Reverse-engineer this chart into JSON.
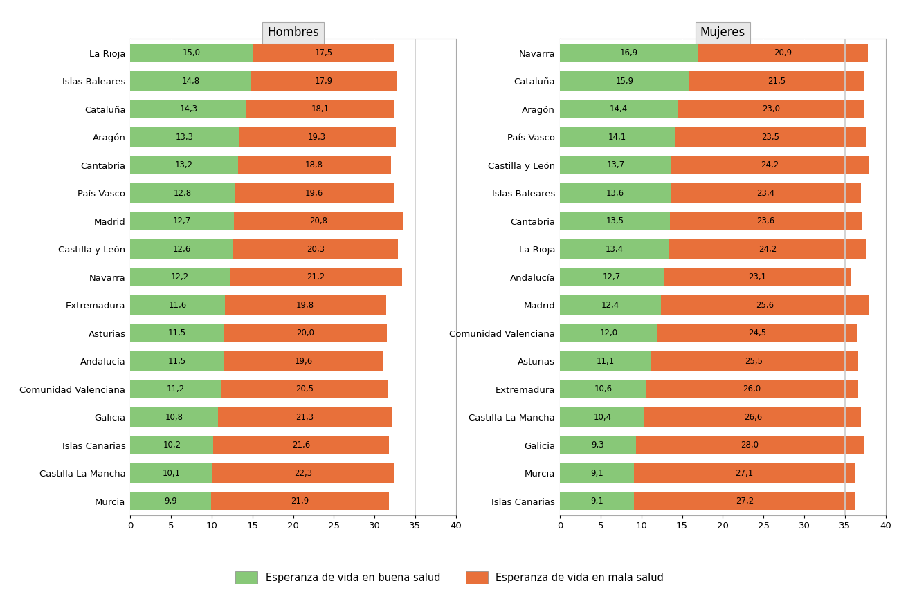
{
  "hombres": {
    "title": "Hombres",
    "categories": [
      "La Rioja",
      "Islas Baleares",
      "Cataluña",
      "Aragón",
      "Cantabria",
      "País Vasco",
      "Madrid",
      "Castilla y León",
      "Navarra",
      "Extremadura",
      "Asturias",
      "Andalucía",
      "Comunidad Valenciana",
      "Galicia",
      "Islas Canarias",
      "Castilla La Mancha",
      "Murcia"
    ],
    "buena": [
      15.0,
      14.8,
      14.3,
      13.3,
      13.2,
      12.8,
      12.7,
      12.6,
      12.2,
      11.6,
      11.5,
      11.5,
      11.2,
      10.8,
      10.2,
      10.1,
      9.9
    ],
    "mala": [
      17.5,
      17.9,
      18.1,
      19.3,
      18.8,
      19.6,
      20.8,
      20.3,
      21.2,
      19.8,
      20.0,
      19.6,
      20.5,
      21.3,
      21.6,
      22.3,
      21.9
    ]
  },
  "mujeres": {
    "title": "Mujeres",
    "categories": [
      "Navarra",
      "Cataluña",
      "Aragón",
      "País Vasco",
      "Castilla y León",
      "Islas Baleares",
      "Cantabria",
      "La Rioja",
      "Andalucía",
      "Madrid",
      "Comunidad Valenciana",
      "Asturias",
      "Extremadura",
      "Castilla La Mancha",
      "Galicia",
      "Murcia",
      "Islas Canarias"
    ],
    "buena": [
      16.9,
      15.9,
      14.4,
      14.1,
      13.7,
      13.6,
      13.5,
      13.4,
      12.7,
      12.4,
      12.0,
      11.1,
      10.6,
      10.4,
      9.3,
      9.1,
      9.1
    ],
    "mala": [
      20.9,
      21.5,
      23.0,
      23.5,
      24.2,
      23.4,
      23.6,
      24.2,
      23.1,
      25.6,
      24.5,
      25.5,
      26.0,
      26.6,
      28.0,
      27.1,
      27.2
    ]
  },
  "color_buena": "#88c878",
  "color_mala": "#e8703a",
  "bg_panel": "#e8e8e8",
  "bg_plot": "#ffffff",
  "xlim": [
    0,
    40
  ],
  "xticks": [
    0,
    5,
    10,
    15,
    20,
    25,
    30,
    35,
    40
  ],
  "legend_buena": "Esperanza de vida en buena salud",
  "legend_mala": "Esperanza de vida en mala salud",
  "vline_x": 35,
  "bar_height": 0.68,
  "label_fontsize": 8.5,
  "tick_fontsize": 9.5,
  "title_fontsize": 12
}
